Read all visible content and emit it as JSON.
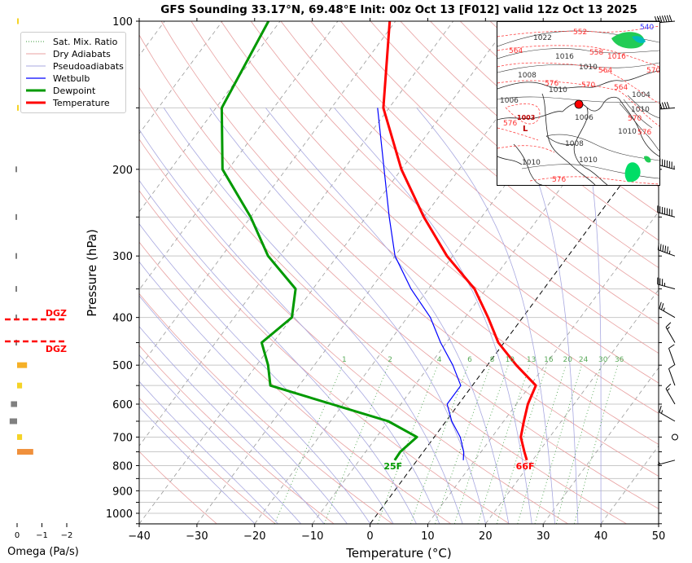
{
  "chart_data": {
    "type": "line",
    "title": "GFS Sounding 33.17°N, 69.48°E Init: 00z Oct 13 [F012] valid 12z Oct 13 2025",
    "xlabel": "Temperature (°C)",
    "ylabel": "Pressure (hPa)",
    "xlim": [
      -40,
      50
    ],
    "ylim": [
      1050,
      100
    ],
    "x_ticks": [
      "−40",
      "−30",
      "−20",
      "−10",
      "0",
      "10",
      "20",
      "30",
      "40",
      "50"
    ],
    "y_ticks": [
      "100",
      "200",
      "300",
      "400",
      "500",
      "600",
      "700",
      "800",
      "900",
      "1000"
    ],
    "legend": {
      "placement": "top-left",
      "entries": [
        "Sat. Mix. Ratio",
        "Dry Adiabats",
        "Pseudoadiabats",
        "Wetbulb",
        "Dewpoint",
        "Temperature"
      ]
    },
    "series": [
      {
        "name": "Temperature",
        "color": "#ff0000",
        "points": [
          [
            780,
            19
          ],
          [
            750,
            17.5
          ],
          [
            700,
            15
          ],
          [
            650,
            13.5
          ],
          [
            600,
            12
          ],
          [
            550,
            11
          ],
          [
            500,
            5
          ],
          [
            450,
            -1
          ],
          [
            400,
            -6
          ],
          [
            350,
            -12
          ],
          [
            300,
            -21
          ],
          [
            250,
            -30
          ],
          [
            200,
            -40
          ],
          [
            150,
            -51
          ],
          [
            100,
            -61
          ]
        ]
      },
      {
        "name": "Dewpoint",
        "color": "#009900",
        "points": [
          [
            780,
            -3.9
          ],
          [
            750,
            -4
          ],
          [
            700,
            -3
          ],
          [
            650,
            -10
          ],
          [
            600,
            -22
          ],
          [
            550,
            -35
          ],
          [
            500,
            -38
          ],
          [
            450,
            -42
          ],
          [
            400,
            -40
          ],
          [
            350,
            -43
          ],
          [
            300,
            -52
          ],
          [
            250,
            -60
          ],
          [
            200,
            -71
          ],
          [
            150,
            -79
          ],
          [
            100,
            -82
          ]
        ]
      },
      {
        "name": "Wetbulb",
        "color": "#0000ff",
        "points": [
          [
            780,
            8
          ],
          [
            750,
            7
          ],
          [
            700,
            4.5
          ],
          [
            650,
            1
          ],
          [
            600,
            -2
          ],
          [
            550,
            -2
          ],
          [
            500,
            -6
          ],
          [
            450,
            -11
          ],
          [
            400,
            -16
          ],
          [
            350,
            -23
          ],
          [
            300,
            -30
          ],
          [
            250,
            -36
          ],
          [
            200,
            -43
          ],
          [
            150,
            -52
          ]
        ]
      }
    ],
    "surface_labels": {
      "dewpoint": "25F",
      "temperature": "66F"
    },
    "mixing_ratio_labels": [
      "1",
      "2",
      "4",
      "6",
      "8",
      "10",
      "13",
      "16",
      "20",
      "24",
      "30",
      "36"
    ],
    "dgz_labels": [
      "DGZ",
      "DGZ"
    ],
    "omega_panel": {
      "xlabel": "Omega (Pa/s)",
      "x_ticks": [
        "0",
        "−1",
        "−2"
      ],
      "bars": [
        {
          "p": 100,
          "value": -0.02,
          "color": "#f5d327"
        },
        {
          "p": 150,
          "value": -0.02,
          "color": "#f5d327"
        },
        {
          "p": 200,
          "value": 0.04,
          "color": "#808080"
        },
        {
          "p": 250,
          "value": 0.06,
          "color": "#808080"
        },
        {
          "p": 300,
          "value": 0.06,
          "color": "#808080"
        },
        {
          "p": 350,
          "value": 0.06,
          "color": "#808080"
        },
        {
          "p": 400,
          "value": 0.06,
          "color": "#808080"
        },
        {
          "p": 450,
          "value": 0.02,
          "color": "#808080"
        },
        {
          "p": 500,
          "value": -0.4,
          "color": "#f5b027"
        },
        {
          "p": 550,
          "value": -0.2,
          "color": "#f5d327"
        },
        {
          "p": 600,
          "value": 0.25,
          "color": "#808080"
        },
        {
          "p": 650,
          "value": 0.3,
          "color": "#808080"
        },
        {
          "p": 700,
          "value": -0.2,
          "color": "#f5d327"
        },
        {
          "p": 750,
          "value": -0.65,
          "color": "#f0903c"
        }
      ]
    },
    "wind_barbs": [
      {
        "p": 100,
        "speed_kt": 70,
        "dir": 265
      },
      {
        "p": 150,
        "speed_kt": 60,
        "dir": 265
      },
      {
        "p": 200,
        "speed_kt": 75,
        "dir": 285
      },
      {
        "p": 250,
        "speed_kt": 70,
        "dir": 285
      },
      {
        "p": 300,
        "speed_kt": 55,
        "dir": 290
      },
      {
        "p": 350,
        "speed_kt": 35,
        "dir": 285
      },
      {
        "p": 400,
        "speed_kt": 25,
        "dir": 300
      },
      {
        "p": 450,
        "speed_kt": 15,
        "dir": 330
      },
      {
        "p": 500,
        "speed_kt": 10,
        "dir": 340
      },
      {
        "p": 550,
        "speed_kt": 10,
        "dir": 340
      },
      {
        "p": 600,
        "speed_kt": 15,
        "dir": 330
      },
      {
        "p": 650,
        "speed_kt": 15,
        "dir": 300
      },
      {
        "p": 700,
        "speed_kt": 0,
        "dir": 0
      },
      {
        "p": 780,
        "speed_kt": 5,
        "dir": 255
      }
    ]
  },
  "inset_map": {
    "labels": [
      "1022",
      "552",
      "564",
      "1016",
      "558",
      "540",
      "1016",
      "1010",
      "564",
      "570",
      "1008",
      "576",
      "1010",
      "570",
      "564",
      "1006",
      "1003",
      "576",
      "1006",
      "1008",
      "1010",
      "1010",
      "576",
      "1004",
      "570",
      "1010",
      "576",
      "1010"
    ],
    "low_label": "L",
    "low_value": "1003",
    "location_color": "#ff0000"
  }
}
